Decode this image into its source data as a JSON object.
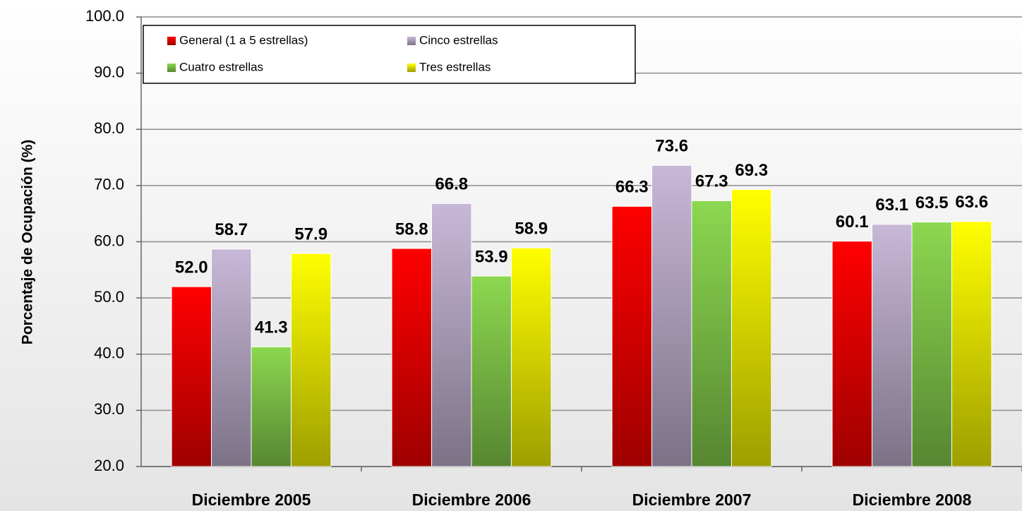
{
  "chart_data": {
    "type": "bar",
    "y_label": "Porcentaje de Ocupación (%)",
    "categories": [
      "Diciembre 2005",
      "Diciembre 2006",
      "Diciembre 2007",
      "Diciembre 2008"
    ],
    "series": [
      {
        "name": "General (1 a 5 estrellas)",
        "color": "#ff0000",
        "values": [
          52.0,
          58.8,
          66.3,
          60.1
        ],
        "value_labels": [
          "52.0",
          "58.8",
          "66.3",
          "60.1"
        ]
      },
      {
        "name": "Cinco estrellas",
        "color": "#c8b8d8",
        "values": [
          58.7,
          66.8,
          73.6,
          63.1
        ],
        "value_labels": [
          "58.7",
          "66.8",
          "73.6",
          "63.1"
        ]
      },
      {
        "name": "Cuatro estrellas",
        "color": "#8cd850",
        "values": [
          41.3,
          53.9,
          67.3,
          63.5
        ],
        "value_labels": [
          "41.3",
          "53.9",
          "67.3",
          "63.5"
        ]
      },
      {
        "name": "Tres estrellas",
        "color": "#ffff00",
        "values": [
          57.9,
          58.9,
          69.3,
          63.6
        ],
        "value_labels": [
          "57.9",
          "58.9",
          "69.3",
          "63.6"
        ]
      }
    ],
    "ylim": [
      20,
      100
    ],
    "yticks": [
      {
        "value": 20,
        "label": "20.0"
      },
      {
        "value": 30,
        "label": "30.0"
      },
      {
        "value": 40,
        "label": "40.0"
      },
      {
        "value": 50,
        "label": "50.0"
      },
      {
        "value": 60,
        "label": "60.0"
      },
      {
        "value": 70,
        "label": "70.0"
      },
      {
        "value": 80,
        "label": "80.0"
      },
      {
        "value": 90,
        "label": "90.0"
      },
      {
        "value": 100,
        "label": "100.0"
      }
    ],
    "grid": true,
    "legend": "upper left"
  }
}
